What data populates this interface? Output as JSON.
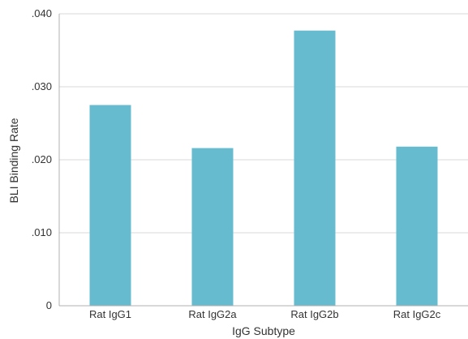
{
  "chart_data": {
    "type": "bar",
    "title": "",
    "xlabel": "IgG Subtype",
    "ylabel": "BLI Binding Rate",
    "categories": [
      "Rat IgG1",
      "Rat IgG2a",
      "Rat IgG2b",
      "Rat IgG2c"
    ],
    "values": [
      0.0275,
      0.0216,
      0.0377,
      0.0218
    ],
    "ylim": [
      0,
      0.04
    ],
    "yticks": [
      0,
      0.01,
      0.02,
      0.03,
      0.04
    ],
    "ytick_labels": [
      "0",
      ".010",
      ".020",
      ".030",
      ".040"
    ],
    "grid": true,
    "legend": "none",
    "colors": {
      "bar": "#67bbcf",
      "grid": "#d9d9d9",
      "axis": "#b0b0b0"
    }
  }
}
